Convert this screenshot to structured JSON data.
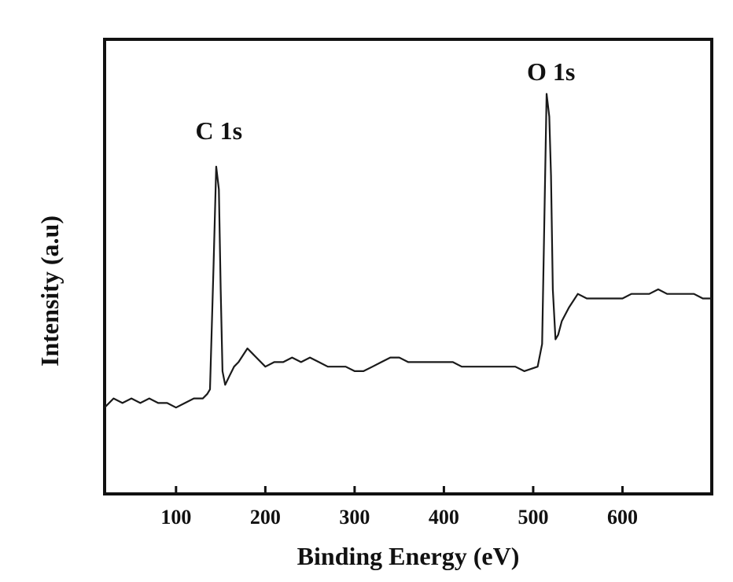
{
  "chart_data": {
    "type": "line",
    "title": "",
    "xlabel": "Binding Energy (eV)",
    "ylabel": "Intensity (a.u)",
    "xlim": [
      20,
      700
    ],
    "ylim": [
      0,
      100
    ],
    "xticks": [
      100,
      200,
      300,
      400,
      500,
      600
    ],
    "yticks": [],
    "grid": false,
    "legend": "none",
    "colors": {
      "line": "#1a1a1a",
      "axis": "#111111"
    },
    "annotations": [
      {
        "text": "C 1s",
        "x": 148,
        "y": 78
      },
      {
        "text": "O 1s",
        "x": 520,
        "y": 91
      }
    ],
    "series": [
      {
        "name": "",
        "x": [
          20,
          30,
          40,
          50,
          60,
          70,
          80,
          90,
          100,
          110,
          120,
          130,
          135,
          138,
          142,
          145,
          148,
          150,
          152,
          155,
          160,
          165,
          170,
          180,
          185,
          190,
          200,
          210,
          220,
          230,
          240,
          250,
          260,
          270,
          280,
          290,
          300,
          310,
          320,
          330,
          340,
          350,
          360,
          370,
          380,
          390,
          400,
          410,
          420,
          430,
          440,
          450,
          460,
          470,
          480,
          490,
          505,
          510,
          512,
          515,
          518,
          520,
          522,
          525,
          528,
          532,
          540,
          550,
          560,
          570,
          580,
          590,
          600,
          610,
          620,
          630,
          640,
          650,
          660,
          670,
          680,
          690,
          700
        ],
        "values": [
          19,
          21,
          20,
          21,
          20,
          21,
          20,
          20,
          19,
          20,
          21,
          21,
          22,
          23,
          50,
          72,
          67,
          45,
          27,
          24,
          26,
          28,
          29,
          32,
          31,
          30,
          28,
          29,
          29,
          30,
          29,
          30,
          29,
          28,
          28,
          28,
          27,
          27,
          28,
          29,
          30,
          30,
          29,
          29,
          29,
          29,
          29,
          29,
          28,
          28,
          28,
          28,
          28,
          28,
          28,
          27,
          28,
          33,
          55,
          88,
          83,
          70,
          45,
          34,
          35,
          38,
          41,
          44,
          43,
          43,
          43,
          43,
          43,
          44,
          44,
          44,
          45,
          44,
          44,
          44,
          44,
          43,
          43
        ]
      }
    ]
  }
}
